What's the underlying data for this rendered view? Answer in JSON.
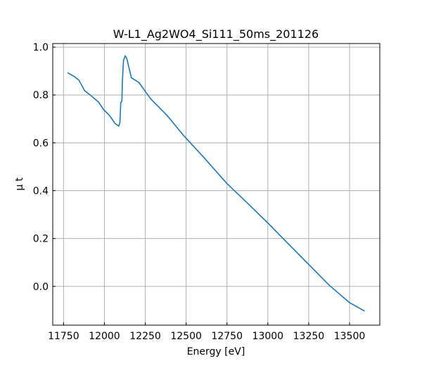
{
  "chart_data": {
    "type": "line",
    "title": "W-L1_Ag2WO4_Si111_50ms_201126",
    "xlabel": "Energy [eV]",
    "ylabel": "μ t",
    "xlim": [
      11684,
      13685
    ],
    "ylim": [
      -0.162,
      1.015
    ],
    "xticks": [
      11750,
      12000,
      12250,
      12500,
      12750,
      13000,
      13250,
      13500
    ],
    "yticks": [
      0.0,
      0.2,
      0.4,
      0.6,
      0.8,
      1.0
    ],
    "ytick_labels": [
      "0.0",
      "0.2",
      "0.4",
      "0.6",
      "0.8",
      "1.0"
    ],
    "grid": true,
    "color": "#1f77b4",
    "series": [
      {
        "name": "mu_t",
        "x": [
          11775,
          11814,
          11844,
          11879,
          11913,
          11965,
          11994,
          12030,
          12066,
          12088,
          12095,
          12100,
          12107,
          12110,
          12117,
          12127,
          12136,
          12165,
          12211,
          12283,
          12383,
          12484,
          12600,
          12750,
          12875,
          13000,
          13125,
          13250,
          13375,
          13500,
          13592
        ],
        "y": [
          0.893,
          0.878,
          0.862,
          0.818,
          0.8,
          0.77,
          0.74,
          0.715,
          0.68,
          0.67,
          0.685,
          0.769,
          0.774,
          0.857,
          0.945,
          0.963,
          0.955,
          0.872,
          0.852,
          0.784,
          0.715,
          0.631,
          0.545,
          0.43,
          0.348,
          0.265,
          0.178,
          0.092,
          0.005,
          -0.068,
          -0.103
        ]
      }
    ]
  }
}
